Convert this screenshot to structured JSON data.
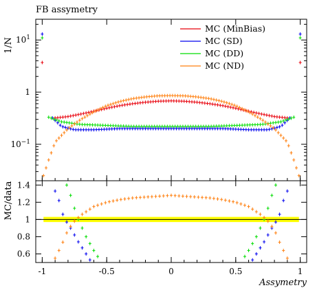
{
  "chart_data": {
    "type": "scatter",
    "title": "FB assymetry",
    "xlabel": "Assymetry",
    "xlim": [
      -1.05,
      1.05
    ],
    "top_panel": {
      "ylabel": "1/N",
      "yscale": "log",
      "ylim": [
        0.02,
        25
      ],
      "yticks": [
        {
          "value": 10,
          "label": "10",
          "exp": "1"
        },
        {
          "value": 1,
          "label": "1",
          "exp": ""
        },
        {
          "value": 0.1,
          "label": "10",
          "exp": "−1"
        }
      ]
    },
    "bottom_panel": {
      "ylabel": "MC/data",
      "ylim": [
        0.5,
        1.45
      ],
      "yticks": [
        0.6,
        0.8,
        1,
        1.2,
        1.4
      ],
      "reference_line": 1.0,
      "band": [
        0.97,
        1.03
      ]
    },
    "xticks": [
      -1,
      -0.5,
      0,
      0.5,
      1
    ],
    "xtick_labels": [
      "-1",
      "-0.5",
      "0",
      "0.5",
      "1"
    ],
    "series": [
      {
        "name": "MC (MinBias)",
        "color": "#e8000b",
        "x": [
          -1.0,
          -0.9,
          -0.8,
          -0.7,
          -0.6,
          -0.5,
          -0.4,
          -0.3,
          -0.2,
          -0.1,
          0.0,
          0.1,
          0.2,
          0.3,
          0.4,
          0.5,
          0.6,
          0.7,
          0.8,
          0.9,
          1.0
        ],
        "top": [
          3.7,
          0.32,
          0.34,
          0.38,
          0.43,
          0.49,
          0.55,
          0.6,
          0.64,
          0.67,
          0.68,
          0.67,
          0.64,
          0.6,
          0.55,
          0.49,
          0.43,
          0.38,
          0.34,
          0.32,
          3.7
        ]
      },
      {
        "name": "MC (SD)",
        "color": "#0000ee",
        "x": [
          -1.0,
          -0.92,
          -0.85,
          -0.75,
          -0.6,
          -0.4,
          -0.2,
          0.0,
          0.2,
          0.4,
          0.6,
          0.75,
          0.85,
          0.92,
          1.0
        ],
        "top": [
          13.0,
          0.32,
          0.22,
          0.19,
          0.19,
          0.2,
          0.2,
          0.2,
          0.2,
          0.2,
          0.19,
          0.19,
          0.22,
          0.32,
          13.0
        ],
        "ratio_x": [
          -0.9,
          -0.87,
          -0.84,
          -0.81,
          -0.78,
          -0.75,
          -0.72,
          -0.69,
          -0.66,
          -0.63,
          0.63,
          0.66,
          0.69,
          0.72,
          0.75,
          0.78,
          0.81,
          0.84,
          0.87,
          0.9
        ],
        "ratio": [
          1.33,
          1.22,
          1.06,
          0.97,
          0.9,
          0.82,
          0.74,
          0.67,
          0.6,
          0.53,
          0.53,
          0.6,
          0.67,
          0.74,
          0.82,
          0.9,
          0.97,
          1.06,
          1.22,
          1.33
        ]
      },
      {
        "name": "MC (DD)",
        "color": "#00dd00",
        "x": [
          -1.0,
          -0.95,
          -0.85,
          -0.7,
          -0.5,
          -0.3,
          -0.1,
          0.0,
          0.1,
          0.3,
          0.5,
          0.7,
          0.85,
          0.95,
          1.0
        ],
        "top": [
          11.0,
          0.33,
          0.27,
          0.24,
          0.23,
          0.22,
          0.22,
          0.22,
          0.22,
          0.22,
          0.23,
          0.24,
          0.27,
          0.33,
          11.0
        ],
        "ratio_x": [
          -0.81,
          -0.78,
          -0.75,
          -0.72,
          -0.69,
          -0.66,
          -0.63,
          -0.6,
          -0.57,
          -0.54,
          0.54,
          0.57,
          0.6,
          0.63,
          0.66,
          0.69,
          0.72,
          0.75,
          0.78,
          0.81
        ],
        "ratio": [
          1.4,
          1.28,
          1.13,
          1.0,
          0.9,
          0.8,
          0.72,
          0.64,
          0.57,
          0.5,
          0.5,
          0.57,
          0.64,
          0.72,
          0.8,
          0.9,
          1.0,
          1.13,
          1.28,
          1.4
        ]
      },
      {
        "name": "MC (ND)",
        "color": "#ff7f0e",
        "x": [
          -0.99,
          -0.95,
          -0.9,
          -0.8,
          -0.7,
          -0.6,
          -0.5,
          -0.4,
          -0.3,
          -0.2,
          -0.1,
          0.0,
          0.1,
          0.2,
          0.3,
          0.4,
          0.5,
          0.6,
          0.7,
          0.8,
          0.9,
          0.95,
          0.99
        ],
        "top": [
          0.025,
          0.05,
          0.11,
          0.2,
          0.3,
          0.42,
          0.55,
          0.66,
          0.75,
          0.81,
          0.85,
          0.86,
          0.85,
          0.81,
          0.75,
          0.66,
          0.55,
          0.42,
          0.3,
          0.2,
          0.11,
          0.05,
          0.025
        ],
        "ratio_x": [
          -0.9,
          -0.85,
          -0.8,
          -0.75,
          -0.7,
          -0.6,
          -0.5,
          -0.4,
          -0.3,
          -0.2,
          -0.1,
          0.0,
          0.1,
          0.2,
          0.3,
          0.4,
          0.5,
          0.6,
          0.7,
          0.75,
          0.8,
          0.85,
          0.9
        ],
        "ratio": [
          0.55,
          0.7,
          0.88,
          0.98,
          1.05,
          1.15,
          1.2,
          1.23,
          1.25,
          1.26,
          1.27,
          1.28,
          1.27,
          1.26,
          1.25,
          1.23,
          1.2,
          1.15,
          1.05,
          0.98,
          0.88,
          0.7,
          0.55
        ]
      }
    ],
    "legend_position": "top-right"
  }
}
